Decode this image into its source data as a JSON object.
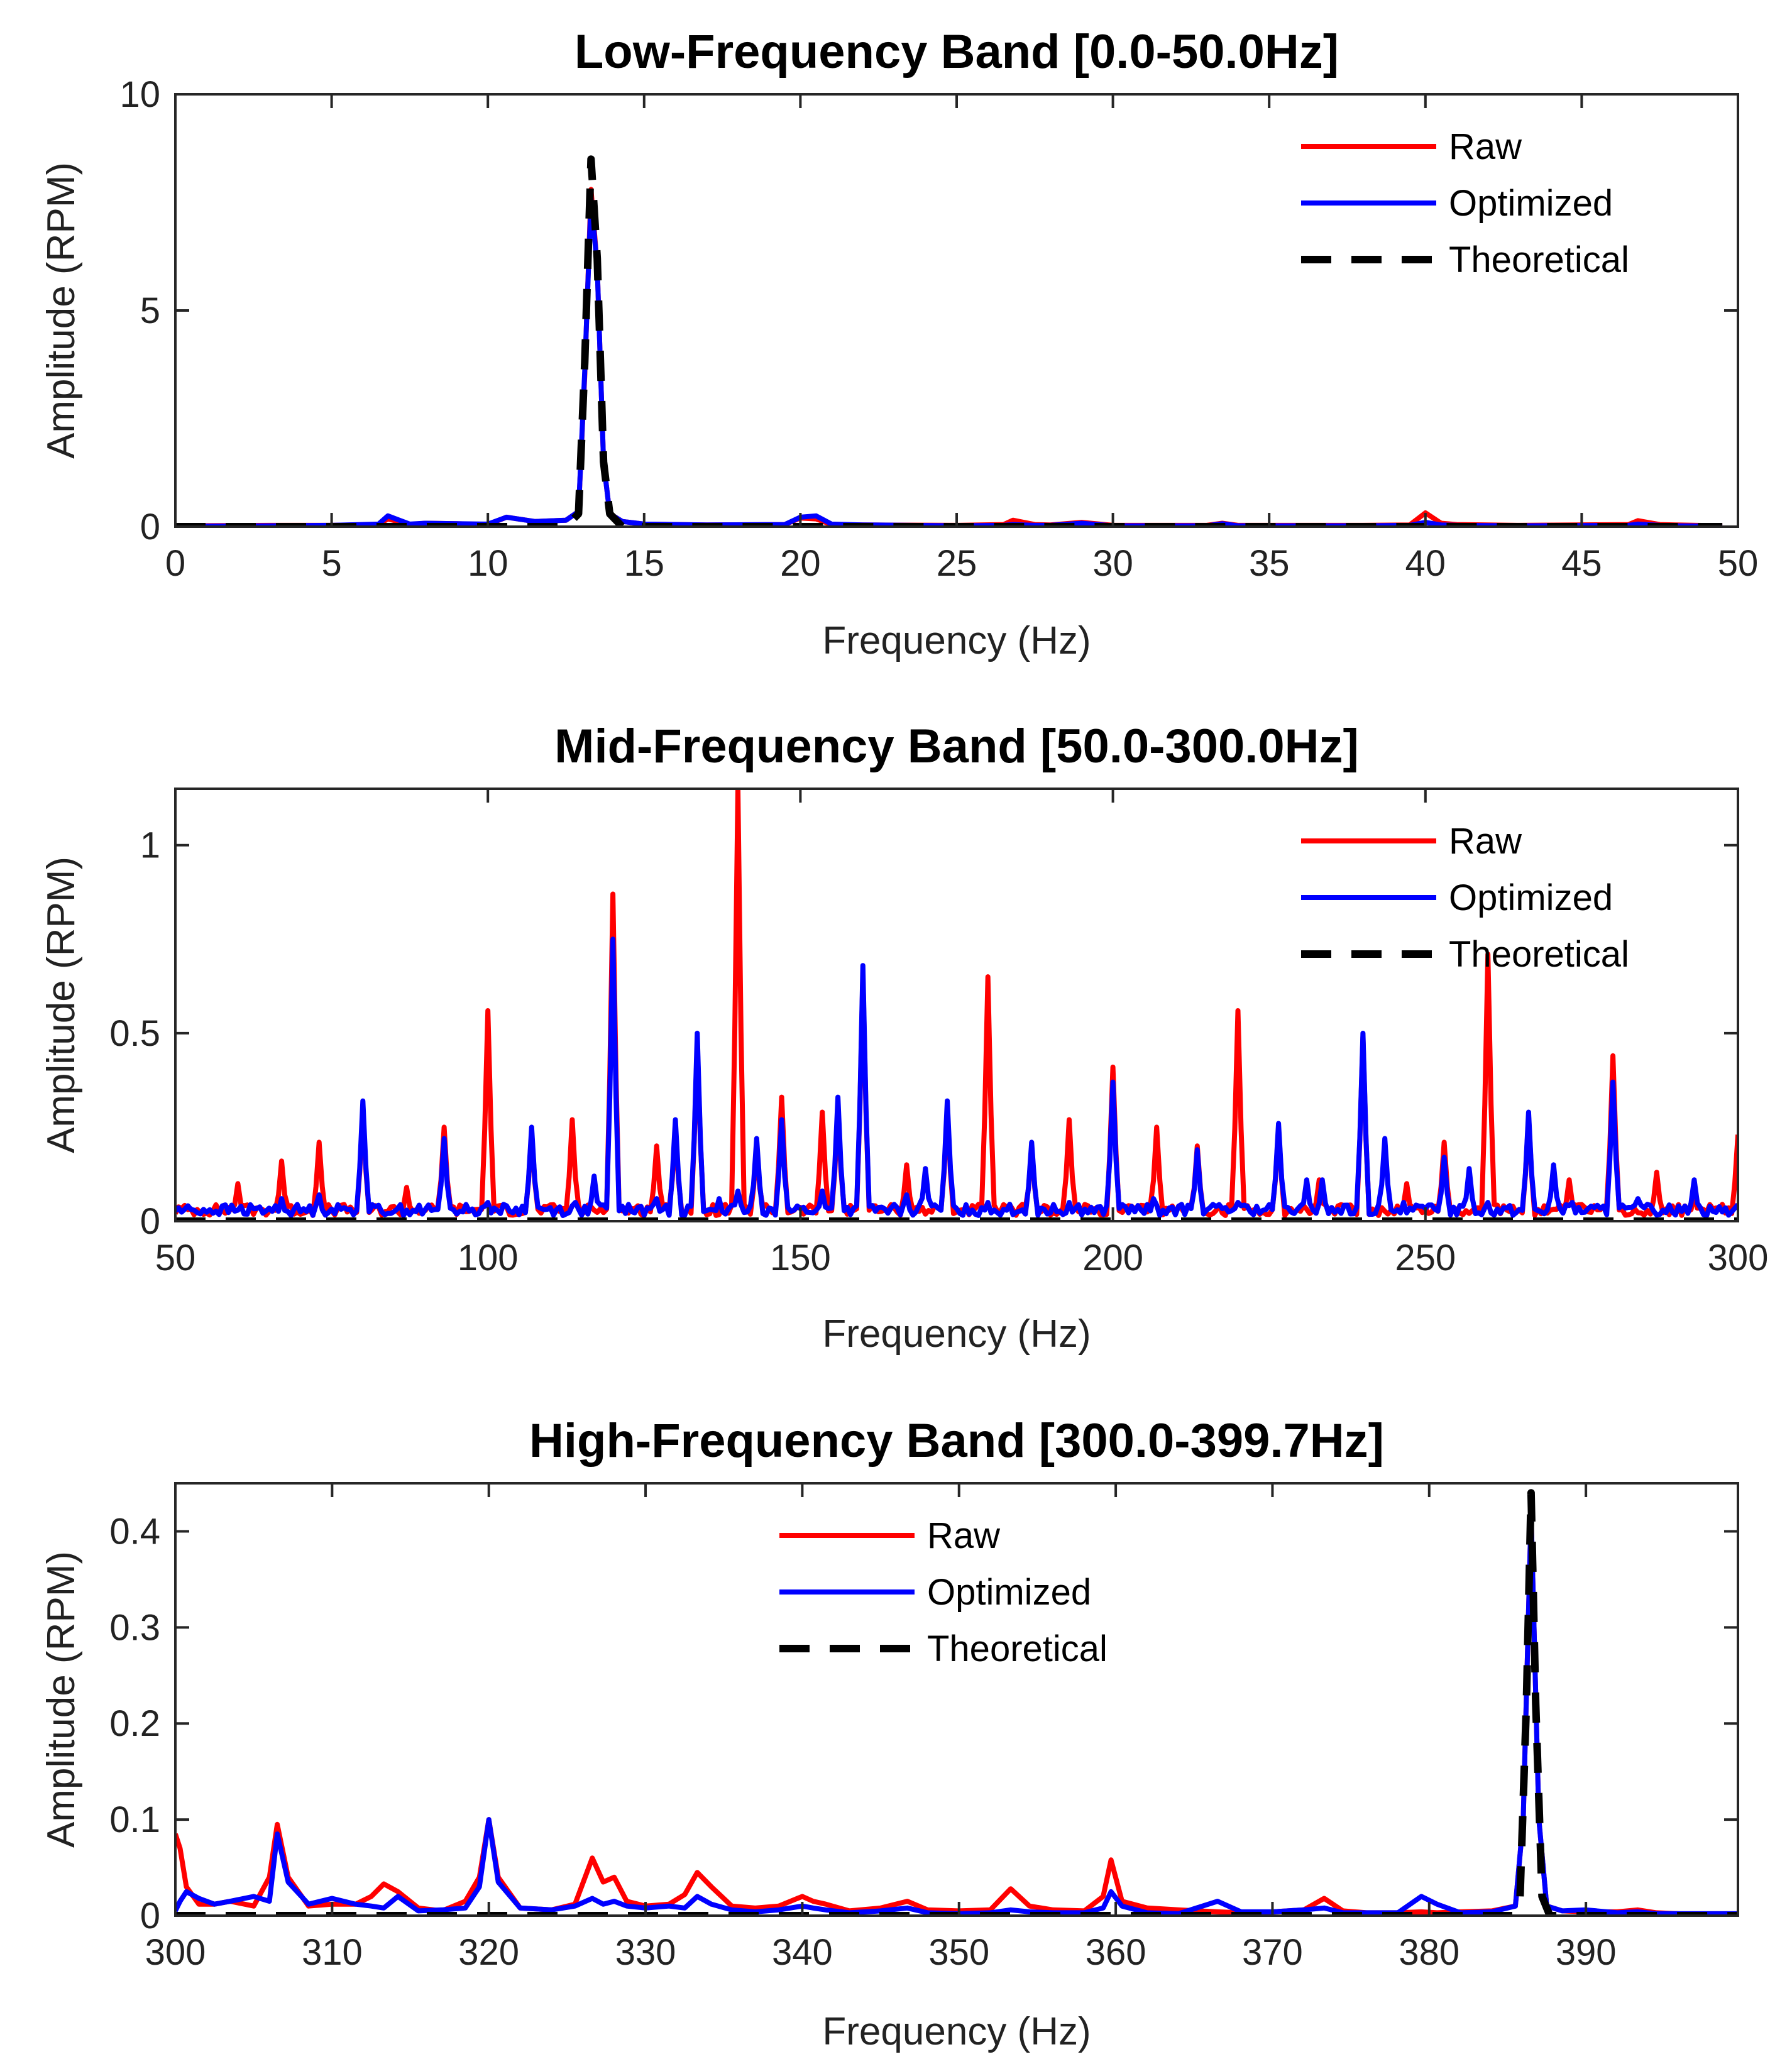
{
  "chart_data": [
    {
      "type": "line",
      "title": "Low-Frequency Band [0.0-50.0Hz]",
      "xlabel": "Frequency (Hz)",
      "ylabel": "Amplitude (RPM)",
      "xlim": [
        0,
        50
      ],
      "ylim": [
        0,
        10
      ],
      "xticks": [
        0,
        5,
        10,
        15,
        20,
        25,
        30,
        35,
        40,
        45,
        50
      ],
      "yticks": [
        0,
        5,
        10
      ],
      "legend_position": "top-right",
      "series": [
        {
          "name": "Raw",
          "color": "#ff0000",
          "style": "solid",
          "x": [
            0,
            3,
            5,
            6.5,
            6.8,
            7.5,
            8,
            9,
            10,
            10.6,
            11.5,
            12.5,
            12.9,
            13.1,
            13.3,
            13.5,
            13.7,
            13.9,
            14.3,
            15,
            17,
            19.5,
            20,
            20.5,
            21,
            22,
            25,
            26.5,
            26.8,
            27.5,
            28,
            29,
            30,
            33,
            33.5,
            34,
            38,
            39.5,
            40,
            40.5,
            41,
            43,
            46.5,
            46.8,
            47.5,
            48,
            49.5
          ],
          "y": [
            0.02,
            0.03,
            0.03,
            0.05,
            0.18,
            0.05,
            0.08,
            0.07,
            0.05,
            0.22,
            0.12,
            0.15,
            0.35,
            3.5,
            7.8,
            6.0,
            1.5,
            0.3,
            0.12,
            0.06,
            0.04,
            0.05,
            0.2,
            0.18,
            0.05,
            0.04,
            0.03,
            0.05,
            0.15,
            0.05,
            0.04,
            0.1,
            0.03,
            0.03,
            0.08,
            0.03,
            0.03,
            0.04,
            0.32,
            0.08,
            0.05,
            0.03,
            0.05,
            0.14,
            0.05,
            0.04,
            0.02
          ]
        },
        {
          "name": "Optimized",
          "color": "#0000ff",
          "style": "solid",
          "x": [
            0,
            3,
            5,
            6.5,
            6.8,
            7.5,
            8,
            9,
            10,
            10.6,
            11.5,
            12.5,
            12.9,
            13.1,
            13.3,
            13.5,
            13.7,
            13.9,
            14.3,
            15,
            17,
            19.5,
            20,
            20.5,
            21,
            22,
            25,
            26.5,
            26.8,
            27.5,
            28,
            29,
            30,
            33,
            33.5,
            34,
            38,
            39.5,
            40,
            40.5,
            41,
            43,
            46.5,
            46.8,
            47.5,
            48,
            49.5
          ],
          "y": [
            0.01,
            0.02,
            0.03,
            0.06,
            0.25,
            0.06,
            0.08,
            0.07,
            0.06,
            0.22,
            0.12,
            0.15,
            0.35,
            3.6,
            7.6,
            6.0,
            1.5,
            0.3,
            0.12,
            0.06,
            0.04,
            0.05,
            0.22,
            0.25,
            0.06,
            0.04,
            0.02,
            0.03,
            0.05,
            0.03,
            0.03,
            0.08,
            0.02,
            0.02,
            0.07,
            0.02,
            0.02,
            0.03,
            0.1,
            0.04,
            0.03,
            0.02,
            0.03,
            0.06,
            0.03,
            0.02,
            0.01
          ]
        },
        {
          "name": "Theoretical",
          "color": "#000000",
          "style": "dashed",
          "x": [
            0,
            12.5,
            12.9,
            13.1,
            13.3,
            13.5,
            13.7,
            13.9,
            14.3,
            49.5
          ],
          "y": [
            0,
            0,
            0.3,
            3.8,
            8.5,
            6.2,
            1.5,
            0.3,
            0,
            0
          ]
        }
      ]
    },
    {
      "type": "line",
      "title": "Mid-Frequency Band [50.0-300.0Hz]",
      "xlabel": "Frequency (Hz)",
      "ylabel": "Amplitude (RPM)",
      "xlim": [
        50,
        300
      ],
      "ylim": [
        0,
        1.15
      ],
      "xticks": [
        50,
        100,
        150,
        200,
        250,
        300
      ],
      "yticks": [
        0,
        0.5,
        1
      ],
      "legend_position": "top-right",
      "series": [
        {
          "name": "Raw",
          "color": "#ff0000",
          "style": "solid",
          "peaks": [
            [
              60,
              0.1
            ],
            [
              67,
              0.16
            ],
            [
              73,
              0.21
            ],
            [
              80,
              0.3
            ],
            [
              87,
              0.09
            ],
            [
              93,
              0.25
            ],
            [
              100,
              0.56
            ],
            [
              107,
              0.24
            ],
            [
              113.5,
              0.27
            ],
            [
              120,
              0.87
            ],
            [
              127,
              0.2
            ],
            [
              130,
              0.25
            ],
            [
              133.5,
              0.48
            ],
            [
              140,
              1.15
            ],
            [
              143,
              0.2
            ],
            [
              147,
              0.33
            ],
            [
              153.5,
              0.29
            ],
            [
              156,
              0.3
            ],
            [
              160,
              0.66
            ],
            [
              167,
              0.15
            ],
            [
              173.5,
              0.3
            ],
            [
              180,
              0.65
            ],
            [
              187,
              0.2
            ],
            [
              193,
              0.27
            ],
            [
              200,
              0.41
            ],
            [
              207,
              0.25
            ],
            [
              213.5,
              0.2
            ],
            [
              220,
              0.56
            ],
            [
              226.5,
              0.25
            ],
            [
              233,
              0.11
            ],
            [
              240,
              0.49
            ],
            [
              247,
              0.1
            ],
            [
              253,
              0.21
            ],
            [
              260,
              0.71
            ],
            [
              266.5,
              0.28
            ],
            [
              273,
              0.11
            ],
            [
              280,
              0.44
            ],
            [
              287,
              0.13
            ],
            [
              293,
              0.07
            ],
            [
              300,
              0.23
            ]
          ]
        },
        {
          "name": "Optimized",
          "color": "#0000ff",
          "style": "solid",
          "peaks": [
            [
              67,
              0.06
            ],
            [
              73,
              0.07
            ],
            [
              80,
              0.32
            ],
            [
              93,
              0.22
            ],
            [
              100,
              0.05
            ],
            [
              107,
              0.25
            ],
            [
              114,
              0.05
            ],
            [
              117,
              0.12
            ],
            [
              120,
              0.75
            ],
            [
              127,
              0.06
            ],
            [
              130,
              0.27
            ],
            [
              133.5,
              0.5
            ],
            [
              137,
              0.06
            ],
            [
              140,
              0.08
            ],
            [
              143,
              0.22
            ],
            [
              147,
              0.27
            ],
            [
              153.5,
              0.08
            ],
            [
              156,
              0.33
            ],
            [
              160,
              0.68
            ],
            [
              167,
              0.07
            ],
            [
              170,
              0.14
            ],
            [
              173.5,
              0.32
            ],
            [
              180,
              0.05
            ],
            [
              187,
              0.21
            ],
            [
              193,
              0.05
            ],
            [
              200,
              0.37
            ],
            [
              206.5,
              0.06
            ],
            [
              213.5,
              0.19
            ],
            [
              220,
              0.05
            ],
            [
              226.5,
              0.26
            ],
            [
              231,
              0.11
            ],
            [
              233.5,
              0.11
            ],
            [
              240,
              0.5
            ],
            [
              243.5,
              0.22
            ],
            [
              246.5,
              0.05
            ],
            [
              253,
              0.17
            ],
            [
              257,
              0.14
            ],
            [
              260,
              0.05
            ],
            [
              266.5,
              0.29
            ],
            [
              270.5,
              0.15
            ],
            [
              273.5,
              0.05
            ],
            [
              280,
              0.37
            ],
            [
              284,
              0.06
            ],
            [
              293,
              0.11
            ],
            [
              300,
              0.04
            ]
          ]
        },
        {
          "name": "Theoretical",
          "color": "#000000",
          "style": "dashed",
          "x": [
            50,
            300
          ],
          "y": [
            0,
            0
          ]
        }
      ]
    },
    {
      "type": "line",
      "title": "High-Frequency Band [300.0-399.7Hz]",
      "xlabel": "Frequency (Hz)",
      "ylabel": "Amplitude (RPM)",
      "xlim": [
        300,
        399.7
      ],
      "ylim": [
        0,
        0.45
      ],
      "xticks": [
        300,
        310,
        320,
        330,
        340,
        350,
        360,
        370,
        380,
        390
      ],
      "yticks": [
        0,
        0.1,
        0.2,
        0.3,
        0.4
      ],
      "legend_position": "top-center",
      "series": [
        {
          "name": "Raw",
          "color": "#ff0000",
          "style": "solid",
          "x": [
            300,
            300.3,
            300.7,
            301.5,
            302.5,
            303.5,
            305,
            306,
            306.5,
            307.2,
            308.5,
            310,
            311.5,
            312.5,
            313.3,
            314.2,
            315.5,
            317,
            318.5,
            319.4,
            320,
            320.6,
            322,
            324,
            325.5,
            326.6,
            327.3,
            328,
            328.8,
            330,
            331.5,
            332.5,
            333.3,
            334.2,
            335.5,
            337,
            338.5,
            340,
            340.7,
            341.5,
            343,
            345,
            346.7,
            348,
            350,
            352,
            353.3,
            354.5,
            356,
            358,
            359.2,
            359.7,
            360.4,
            362,
            364,
            366.5,
            368,
            370,
            372,
            373.3,
            374.5,
            376,
            378,
            379.5,
            380.5,
            382,
            384,
            385.5,
            386,
            386.5,
            387,
            387.5,
            388.5,
            390,
            392,
            393.3,
            394.5,
            396,
            398,
            399.7
          ],
          "y": [
            0.085,
            0.07,
            0.03,
            0.012,
            0.012,
            0.015,
            0.01,
            0.04,
            0.095,
            0.04,
            0.01,
            0.012,
            0.012,
            0.02,
            0.033,
            0.025,
            0.008,
            0.005,
            0.015,
            0.04,
            0.1,
            0.04,
            0.008,
            0.006,
            0.012,
            0.06,
            0.035,
            0.04,
            0.015,
            0.01,
            0.012,
            0.022,
            0.045,
            0.03,
            0.01,
            0.008,
            0.01,
            0.02,
            0.015,
            0.012,
            0.005,
            0.008,
            0.015,
            0.006,
            0.005,
            0.006,
            0.028,
            0.01,
            0.006,
            0.005,
            0.02,
            0.058,
            0.015,
            0.008,
            0.006,
            0.004,
            0.003,
            0.004,
            0.006,
            0.018,
            0.005,
            0.003,
            0.003,
            0.004,
            0.003,
            0.004,
            0.005,
            0.01,
            0.1,
            0.42,
            0.1,
            0.01,
            0.005,
            0.004,
            0.004,
            0.006,
            0.003,
            0.002,
            0.002,
            0.002
          ]
        },
        {
          "name": "Optimized",
          "color": "#0000ff",
          "style": "solid",
          "x": [
            300,
            300.3,
            300.7,
            301.5,
            302.5,
            303.5,
            305,
            306,
            306.5,
            307.2,
            308.5,
            310,
            311.5,
            312.5,
            313.3,
            314.2,
            315.5,
            317,
            318.5,
            319.4,
            320,
            320.6,
            322,
            324,
            325.5,
            326.6,
            327.3,
            328,
            328.8,
            330,
            331.5,
            332.5,
            333.3,
            334.2,
            335.5,
            337,
            338.5,
            340,
            340.7,
            341.5,
            343,
            345,
            346.7,
            348,
            350,
            352,
            353.3,
            354.5,
            356,
            358,
            359.2,
            359.7,
            360.4,
            362,
            364,
            366.5,
            368,
            370,
            372,
            373.3,
            374.5,
            376,
            378,
            379.5,
            380.5,
            382,
            384,
            385.5,
            386,
            386.5,
            387,
            387.5,
            388.5,
            390,
            392,
            393.3,
            394.5,
            396,
            398,
            399.7
          ],
          "y": [
            0.005,
            0.015,
            0.025,
            0.018,
            0.012,
            0.015,
            0.02,
            0.015,
            0.085,
            0.035,
            0.012,
            0.018,
            0.012,
            0.01,
            0.008,
            0.02,
            0.005,
            0.006,
            0.008,
            0.03,
            0.1,
            0.035,
            0.008,
            0.006,
            0.01,
            0.018,
            0.012,
            0.015,
            0.01,
            0.008,
            0.01,
            0.008,
            0.02,
            0.012,
            0.006,
            0.004,
            0.006,
            0.01,
            0.008,
            0.006,
            0.003,
            0.005,
            0.008,
            0.003,
            0.002,
            0.003,
            0.006,
            0.004,
            0.003,
            0.003,
            0.008,
            0.025,
            0.01,
            0.003,
            0.002,
            0.015,
            0.004,
            0.004,
            0.006,
            0.008,
            0.003,
            0.003,
            0.003,
            0.02,
            0.012,
            0.003,
            0.004,
            0.01,
            0.1,
            0.42,
            0.1,
            0.01,
            0.005,
            0.006,
            0.003,
            0.004,
            0.002,
            0.002,
            0.002,
            0.002
          ]
        },
        {
          "name": "Theoretical",
          "color": "#000000",
          "style": "dashed",
          "x": [
            300,
            385.3,
            385.8,
            386.2,
            386.5,
            386.8,
            387.2,
            387.7,
            399.7
          ],
          "y": [
            0,
            0,
            0.02,
            0.22,
            0.44,
            0.22,
            0.02,
            0,
            0
          ]
        }
      ]
    }
  ]
}
